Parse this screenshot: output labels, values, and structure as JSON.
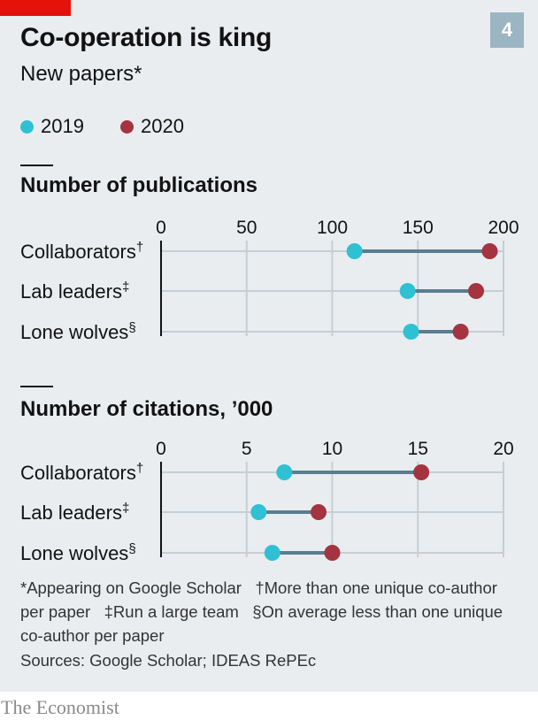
{
  "header": {
    "title": "Co-operation is king",
    "subtitle": "New papers*",
    "chart_number": "4"
  },
  "legend": {
    "items": [
      {
        "label": "2019",
        "color": "#2fc1d3"
      },
      {
        "label": "2020",
        "color": "#a4343f"
      }
    ]
  },
  "colors": {
    "connector": "#5a7d8f",
    "grid": "#c5cfd4",
    "badge": "#9bb5c2",
    "brand_red": "#e3120b"
  },
  "chart_data": [
    {
      "type": "dumbbell",
      "title": "Number of publications",
      "categories": [
        "Collaborators†",
        "Lab leaders‡",
        "Lone wolves§"
      ],
      "xlim": [
        0,
        200
      ],
      "xticks": [
        "0",
        "50",
        "100",
        "150",
        "200"
      ],
      "series": [
        {
          "name": "2019",
          "values": [
            113,
            144,
            146
          ]
        },
        {
          "name": "2020",
          "values": [
            192,
            184,
            175
          ]
        }
      ]
    },
    {
      "type": "dumbbell",
      "title": "Number of citations, ’000",
      "categories": [
        "Collaborators†",
        "Lab leaders‡",
        "Lone wolves§"
      ],
      "xlim": [
        0,
        20
      ],
      "xticks": [
        "0",
        "5",
        "10",
        "15",
        "20"
      ],
      "series": [
        {
          "name": "2019",
          "values": [
            7.2,
            5.7,
            6.5
          ]
        },
        {
          "name": "2020",
          "values": [
            15.2,
            9.2,
            10.0
          ]
        }
      ]
    }
  ],
  "footnotes": {
    "star": "*Appearing on Google Scholar",
    "dagger": "†More than one unique co-author per paper",
    "double_dagger": "‡Run a large team",
    "section": "§On average less than one unique co-author per paper"
  },
  "sources": "Sources: Google Scholar; IDEAS RePEc",
  "brand": "The Economist"
}
